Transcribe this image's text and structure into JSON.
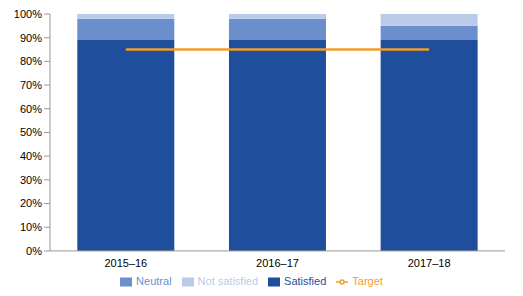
{
  "chart_data": {
    "type": "bar",
    "stacked": true,
    "grid": false,
    "legend": "bottom",
    "categories": [
      "2015–16",
      "2016–17",
      "2017–18"
    ],
    "series": [
      {
        "name": "Satisfied",
        "color": "#1f4e9c",
        "values": [
          89,
          89,
          89
        ]
      },
      {
        "name": "Neutral",
        "color": "#6a8fcc",
        "values": [
          9,
          9,
          6
        ]
      },
      {
        "name": "Not satisfied",
        "color": "#b9cbe8",
        "values": [
          2,
          2,
          5
        ]
      },
      {
        "name": "Target",
        "type": "line",
        "color": "#f39c2b",
        "values": [
          85,
          85,
          85
        ]
      }
    ],
    "ylim": [
      0,
      100
    ],
    "yticks": [
      {
        "value": 0,
        "label": "0%"
      },
      {
        "value": 10,
        "label": "10%"
      },
      {
        "value": 20,
        "label": "20%"
      },
      {
        "value": 30,
        "label": "30%"
      },
      {
        "value": 40,
        "label": "40%"
      },
      {
        "value": 50,
        "label": "50%"
      },
      {
        "value": 60,
        "label": "60%"
      },
      {
        "value": 70,
        "label": "70%"
      },
      {
        "value": 80,
        "label": "80%"
      },
      {
        "value": 90,
        "label": "90%"
      },
      {
        "value": 100,
        "label": "100%"
      }
    ]
  }
}
